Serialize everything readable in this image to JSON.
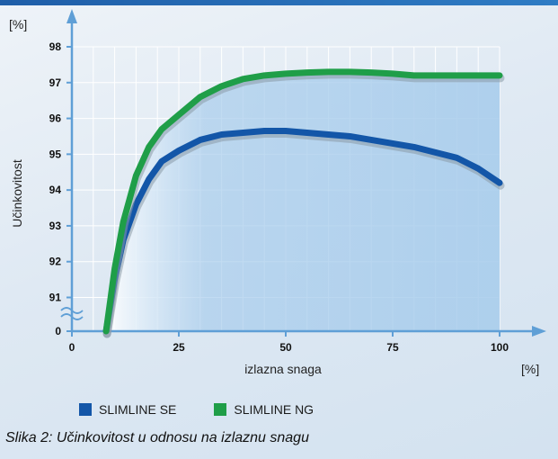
{
  "chart_data": {
    "type": "line",
    "caption": "Slika 2: Učinkovitost u odnosu na izlaznu snagu",
    "xlabel": "izlazna snaga",
    "x_unit": "[%]",
    "ylabel": "Učinkovitost",
    "y_unit": "[%]",
    "x_ticks": [
      0,
      25,
      50,
      75,
      100
    ],
    "y_ticks": [
      0,
      91,
      92,
      93,
      94,
      95,
      96,
      97,
      98
    ],
    "xlim": [
      0,
      100
    ],
    "ylim": [
      90,
      98
    ],
    "y_axis_break": "between 0 and 91",
    "grid": true,
    "legend_position": "bottom",
    "series": [
      {
        "name": "SLIMLINE SE",
        "color": "#1356a8",
        "x": [
          8,
          10,
          12,
          15,
          18,
          21,
          25,
          30,
          35,
          40,
          45,
          50,
          55,
          60,
          65,
          70,
          75,
          80,
          85,
          90,
          95,
          100
        ],
        "y": [
          0,
          91.5,
          92.6,
          93.6,
          94.3,
          94.8,
          95.1,
          95.4,
          95.55,
          95.6,
          95.65,
          95.65,
          95.6,
          95.55,
          95.5,
          95.4,
          95.3,
          95.2,
          95.05,
          94.9,
          94.6,
          94.2
        ]
      },
      {
        "name": "SLIMLINE NG",
        "color": "#1f9e48",
        "x": [
          8,
          10,
          12,
          15,
          18,
          21,
          25,
          30,
          35,
          40,
          45,
          50,
          55,
          60,
          65,
          70,
          75,
          80,
          85,
          90,
          95,
          100
        ],
        "y": [
          0,
          91.8,
          93.1,
          94.4,
          95.2,
          95.7,
          96.1,
          96.6,
          96.9,
          97.1,
          97.2,
          97.25,
          97.28,
          97.3,
          97.3,
          97.28,
          97.25,
          97.2,
          97.2,
          97.2,
          97.2,
          97.2
        ]
      }
    ]
  },
  "colors": {
    "fill_blue": "#a9cdec",
    "axis": "#5f9fd6",
    "grid": "#ffffff"
  }
}
